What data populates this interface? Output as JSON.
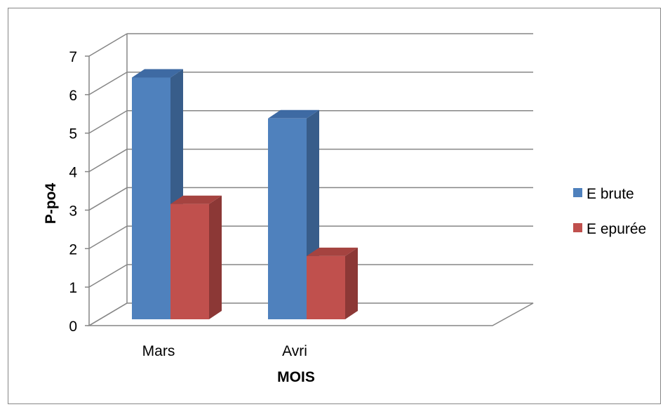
{
  "chart_data": {
    "type": "bar",
    "style": "3d-clustered-column",
    "categories": [
      "Mars",
      "Avri"
    ],
    "series": [
      {
        "name": "E brute",
        "values": [
          6.5,
          5.4
        ],
        "color": "#4f81bd",
        "side_color": "#385d8a",
        "top_color": "#3e6aa3"
      },
      {
        "name": "E epurée",
        "values": [
          3.1,
          1.7
        ],
        "color": "#c0504d",
        "side_color": "#8c3836",
        "top_color": "#a54340"
      }
    ],
    "xlabel": "MOIS",
    "ylabel": "P-po4",
    "ylim": [
      0,
      7
    ],
    "yticks": [
      0,
      1,
      2,
      3,
      4,
      5,
      6,
      7
    ],
    "grid": true,
    "legend_position": "right"
  }
}
